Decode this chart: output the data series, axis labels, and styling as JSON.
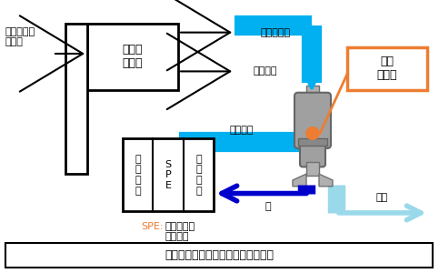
{
  "bg_color": "#ffffff",
  "cyan_color": "#00b0f0",
  "blue_color": "#0000cc",
  "light_cyan_color": "#99d9ea",
  "orange_color": "#ed7d31",
  "gray_color": "#808080",
  "black_color": "#000000",
  "white_color": "#ffffff",
  "bottom_box_text": "カソードで生成する水素と水を分離",
  "ozone_box_label": "オゾン\n飽和器",
  "kikieki_label": "気液\n分離器",
  "input_label": "水＋オゾン\n＋酸素",
  "ozone_gas_label": "オゾンガス",
  "ozone_water_label": "オゾン水",
  "water_hydrogen_label": "水＋水素",
  "water_label": "水",
  "hydrogen_label": "水素",
  "spe_label": "個体高分子\n電解質膜",
  "spe_prefix": "SPE:",
  "anode_label": "ア\nノ\nー\nド",
  "spe_col_label": "S\nP\nE",
  "cathode_label": "カ\nソ\nー\nド"
}
